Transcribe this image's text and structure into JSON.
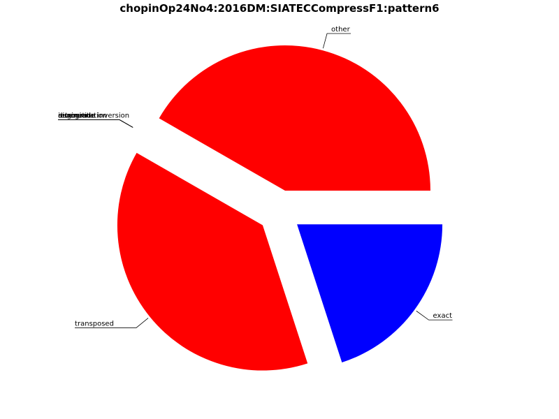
{
  "chart_data": {
    "type": "pie",
    "title": "chopinOp24No4:2016DM:SIATECCompressF1:pattern6",
    "start_angle_deg": 0,
    "direction": "counterclockwise",
    "exploded": true,
    "slices": [
      {
        "label": "other",
        "value": 41.7,
        "color": "#ff0000"
      },
      {
        "label": "inversion",
        "value": 0,
        "color": "#ff0000"
      },
      {
        "label": "retrograde",
        "value": 0,
        "color": "#ff0000"
      },
      {
        "label": "retrograde inversion",
        "value": 0,
        "color": "#ff0000"
      },
      {
        "label": "augmentation",
        "value": 0,
        "color": "#ff0000"
      },
      {
        "label": "diminution",
        "value": 0,
        "color": "#ff0000"
      },
      {
        "label": "transposed",
        "value": 38.3,
        "color": "#ff0000"
      },
      {
        "label": "exact",
        "value": 20.0,
        "color": "#0000ff"
      }
    ]
  }
}
